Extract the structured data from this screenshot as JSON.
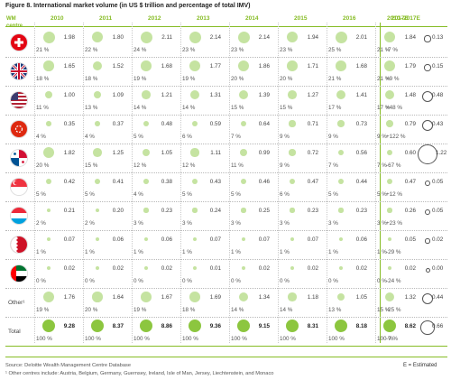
{
  "title": "Figure 8. International market volume (in US $ trillion and percentage of total IMV)",
  "header": {
    "wm": "WM centre",
    "years": [
      "2010",
      "2011",
      "2012",
      "2013",
      "2014",
      "2015",
      "2016",
      "2017E"
    ],
    "change": "2010–2017E"
  },
  "rows": [
    {
      "name": "Switzerland",
      "flag": "switzerland-flag",
      "vals": [
        "1.98",
        "1.80",
        "2.11",
        "2.14",
        "2.14",
        "1.94",
        "2.01",
        "1.84"
      ],
      "pcts": [
        "21 %",
        "22 %",
        "24 %",
        "23 %",
        "23 %",
        "23 %",
        "25 %",
        "21 %"
      ],
      "chg": "-7 %",
      "rv": "0.13"
    },
    {
      "name": "United Kingdom",
      "flag": "uk-flag",
      "vals": [
        "1.65",
        "1.52",
        "1.68",
        "1.77",
        "1.86",
        "1.71",
        "1.68",
        "1.79"
      ],
      "pcts": [
        "18 %",
        "18 %",
        "19 %",
        "19 %",
        "20 %",
        "20 %",
        "21 %",
        "21 %"
      ],
      "chg": "+9 %",
      "rv": "0.15"
    },
    {
      "name": "United States",
      "flag": "us-flag",
      "vals": [
        "1.00",
        "1.09",
        "1.21",
        "1.31",
        "1.39",
        "1.27",
        "1.41",
        "1.48"
      ],
      "pcts": [
        "11 %",
        "13 %",
        "14 %",
        "14 %",
        "15 %",
        "15 %",
        "17 %",
        "17 %"
      ],
      "chg": "+48 %",
      "rv": "0.48"
    },
    {
      "name": "Hong Kong",
      "flag": "hongkong-flag",
      "vals": [
        "0.35",
        "0.37",
        "0.48",
        "0.59",
        "0.64",
        "0.71",
        "0.73",
        "0.79"
      ],
      "pcts": [
        "4 %",
        "4 %",
        "5 %",
        "6 %",
        "7 %",
        "9 %",
        "9 %",
        "9 %"
      ],
      "chg": "+122 %",
      "rv": "0.43"
    },
    {
      "name": "Panama",
      "flag": "panama-flag",
      "vals": [
        "1.82",
        "1.25",
        "1.05",
        "1.11",
        "0.99",
        "0.72",
        "0.56",
        "0.60"
      ],
      "pcts": [
        "20 %",
        "15 %",
        "12 %",
        "12 %",
        "11 %",
        "9 %",
        "7 %",
        "7 %"
      ],
      "chg": "-67 %",
      "rv": "1.22"
    },
    {
      "name": "Singapore",
      "flag": "singapore-flag",
      "vals": [
        "0.42",
        "0.41",
        "0.38",
        "0.43",
        "0.46",
        "0.47",
        "0.44",
        "0.47"
      ],
      "pcts": [
        "5 %",
        "5 %",
        "4 %",
        "5 %",
        "5 %",
        "6 %",
        "5 %",
        "5 %"
      ],
      "chg": "+12 %",
      "rv": "0.05"
    },
    {
      "name": "Luxembourg",
      "flag": "luxembourg-flag",
      "vals": [
        "0.21",
        "0.20",
        "0.23",
        "0.24",
        "0.25",
        "0.23",
        "0.23",
        "0.26"
      ],
      "pcts": [
        "2 %",
        "2 %",
        "3 %",
        "3 %",
        "3 %",
        "3 %",
        "3 %",
        "3 %"
      ],
      "chg": "+23 %",
      "rv": "0.05"
    },
    {
      "name": "Bahrain",
      "flag": "bahrain-flag",
      "vals": [
        "0.07",
        "0.06",
        "0.06",
        "0.07",
        "0.07",
        "0.07",
        "0.06",
        "0.05"
      ],
      "pcts": [
        "1 %",
        "1 %",
        "1 %",
        "1 %",
        "1 %",
        "1 %",
        "1 %",
        "1 %"
      ],
      "chg": "-29 %",
      "rv": "0.02"
    },
    {
      "name": "UAE",
      "flag": "uae-flag",
      "vals": [
        "0.02",
        "0.02",
        "0.02",
        "0.01",
        "0.02",
        "0.02",
        "0.02",
        "0.02"
      ],
      "pcts": [
        "0 %",
        "0 %",
        "0 %",
        "0 %",
        "0 %",
        "0 %",
        "0 %",
        "0 %"
      ],
      "chg": "-24 %",
      "rv": "0.00"
    },
    {
      "name": "Other¹",
      "flag": "",
      "vals": [
        "1.76",
        "1.64",
        "1.67",
        "1.69",
        "1.34",
        "1.18",
        "1.05",
        "1.32"
      ],
      "pcts": [
        "19 %",
        "20 %",
        "19 %",
        "18 %",
        "14 %",
        "14 %",
        "13 %",
        "15 %"
      ],
      "chg": "-25 %",
      "rv": "0.44"
    },
    {
      "name": "Total",
      "flag": "",
      "vals": [
        "9.28",
        "8.37",
        "8.86",
        "9.36",
        "9.15",
        "8.31",
        "8.18",
        "8.62"
      ],
      "pcts": [
        "100 %",
        "100 %",
        "100 %",
        "100 %",
        "100 %",
        "100 %",
        "100 %",
        "100 %"
      ],
      "chg": "-7 %",
      "rv": "0.66"
    }
  ],
  "source": "Source: Deloitte Wealth Management Centre Database",
  "footnote": "¹ Other centres include: Austria, Belgium, Germany, Guernsey, Ireland, Isle of Man, Jersey, Liechtenstein, and Monaco",
  "estimated": "E = Estimated",
  "colors": {
    "accent": "#86bc25",
    "bubble": "#c5e3a1",
    "bubble_total": "#8cc63f"
  }
}
